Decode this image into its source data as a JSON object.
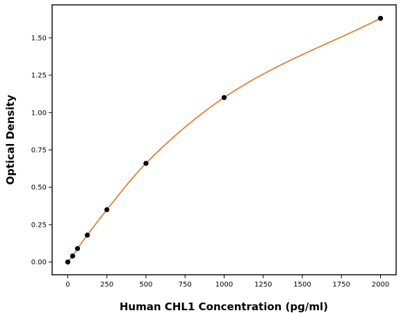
{
  "chart_data": {
    "type": "scatter",
    "title": "",
    "xlabel": "Human CHL1 Concentration (pg/ml)",
    "ylabel": "Optical Density",
    "xlim": [
      -100,
      2100
    ],
    "ylim": [
      -0.085,
      1.72
    ],
    "x_ticks": [
      0,
      250,
      500,
      750,
      1000,
      1250,
      1500,
      1750,
      2000
    ],
    "x_tick_labels": [
      "0",
      "250",
      "500",
      "750",
      "1000",
      "1250",
      "1500",
      "1750",
      "2000"
    ],
    "y_ticks": [
      0,
      0.25,
      0.5,
      0.75,
      1.0,
      1.25,
      1.5
    ],
    "y_tick_labels": [
      "0.00",
      "0.25",
      "0.50",
      "0.75",
      "1.00",
      "1.25",
      "1.50"
    ],
    "grid": false,
    "series": [
      {
        "type": "scatter",
        "color": "#000000",
        "x": [
          0,
          31.25,
          62.5,
          125,
          250,
          500,
          1000,
          2000
        ],
        "y": [
          0.0,
          0.04,
          0.09,
          0.18,
          0.35,
          0.66,
          1.1,
          1.63
        ]
      },
      {
        "type": "line",
        "color": "#e8711c",
        "x": [
          0,
          2000
        ],
        "y": [
          0.0,
          1.63
        ]
      }
    ]
  }
}
